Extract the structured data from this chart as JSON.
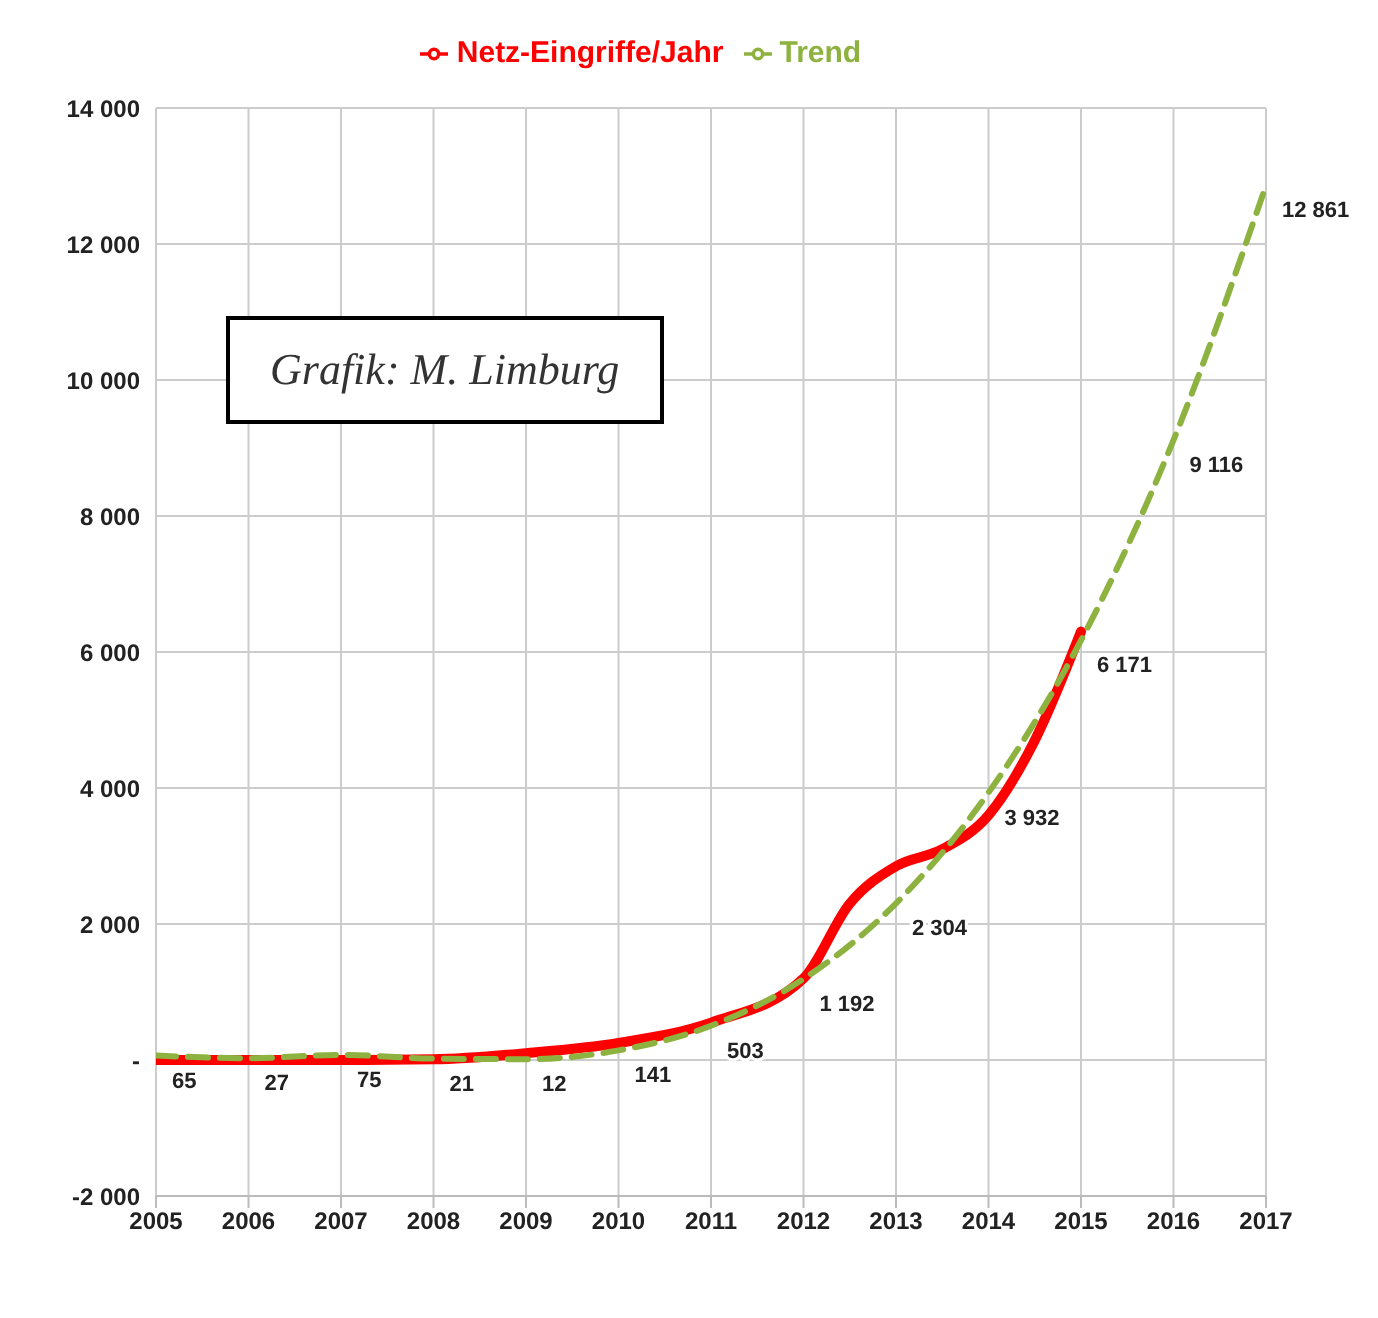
{
  "chart_data": {
    "type": "line",
    "legend": "top",
    "grid": true,
    "xlim": [
      2005,
      2017
    ],
    "xticks": [
      2005,
      2006,
      2007,
      2008,
      2009,
      2010,
      2011,
      2012,
      2013,
      2014,
      2015,
      2016,
      2017
    ],
    "ylim": [
      -2000,
      14000
    ],
    "yticks": [
      {
        "value": -2000,
        "label": "-2 000"
      },
      {
        "value": 0,
        "label": "-"
      },
      {
        "value": 2000,
        "label": "2 000"
      },
      {
        "value": 4000,
        "label": "4 000"
      },
      {
        "value": 6000,
        "label": "6 000"
      },
      {
        "value": 8000,
        "label": "8 000"
      },
      {
        "value": 10000,
        "label": "10 000"
      },
      {
        "value": 12000,
        "label": "12 000"
      },
      {
        "value": 14000,
        "label": "14 000"
      }
    ],
    "annotations": [
      "Grafik: M. Limburg"
    ],
    "series": [
      {
        "name": "Netz-Eingriffe/Jahr",
        "color": "#ff0000",
        "line_style": "solid",
        "x": [
          2005,
          2006,
          2007,
          2008,
          2009,
          2010,
          2011,
          2012,
          2012.5,
          2013,
          2013.5,
          2014,
          2014.5,
          2015
        ],
        "values": [
          0,
          0,
          0,
          10,
          100,
          250,
          550,
          1200,
          2300,
          2850,
          3100,
          3600,
          4700,
          6300
        ]
      },
      {
        "name": "Trend",
        "color": "#8db23f",
        "line_style": "dashed",
        "x": [
          2005,
          2006,
          2007,
          2008,
          2009,
          2010,
          2011,
          2012,
          2013,
          2014,
          2015,
          2016,
          2017
        ],
        "values": [
          65,
          27,
          75,
          21,
          12,
          141,
          503,
          1192,
          2304,
          3932,
          6171,
          9116,
          12861
        ],
        "value_labels": [
          "65",
          "27",
          "75",
          "21",
          "12",
          "141",
          "503",
          "1 192",
          "2 304",
          "3 932",
          "6 171",
          "9 116",
          "12 861"
        ]
      }
    ]
  }
}
